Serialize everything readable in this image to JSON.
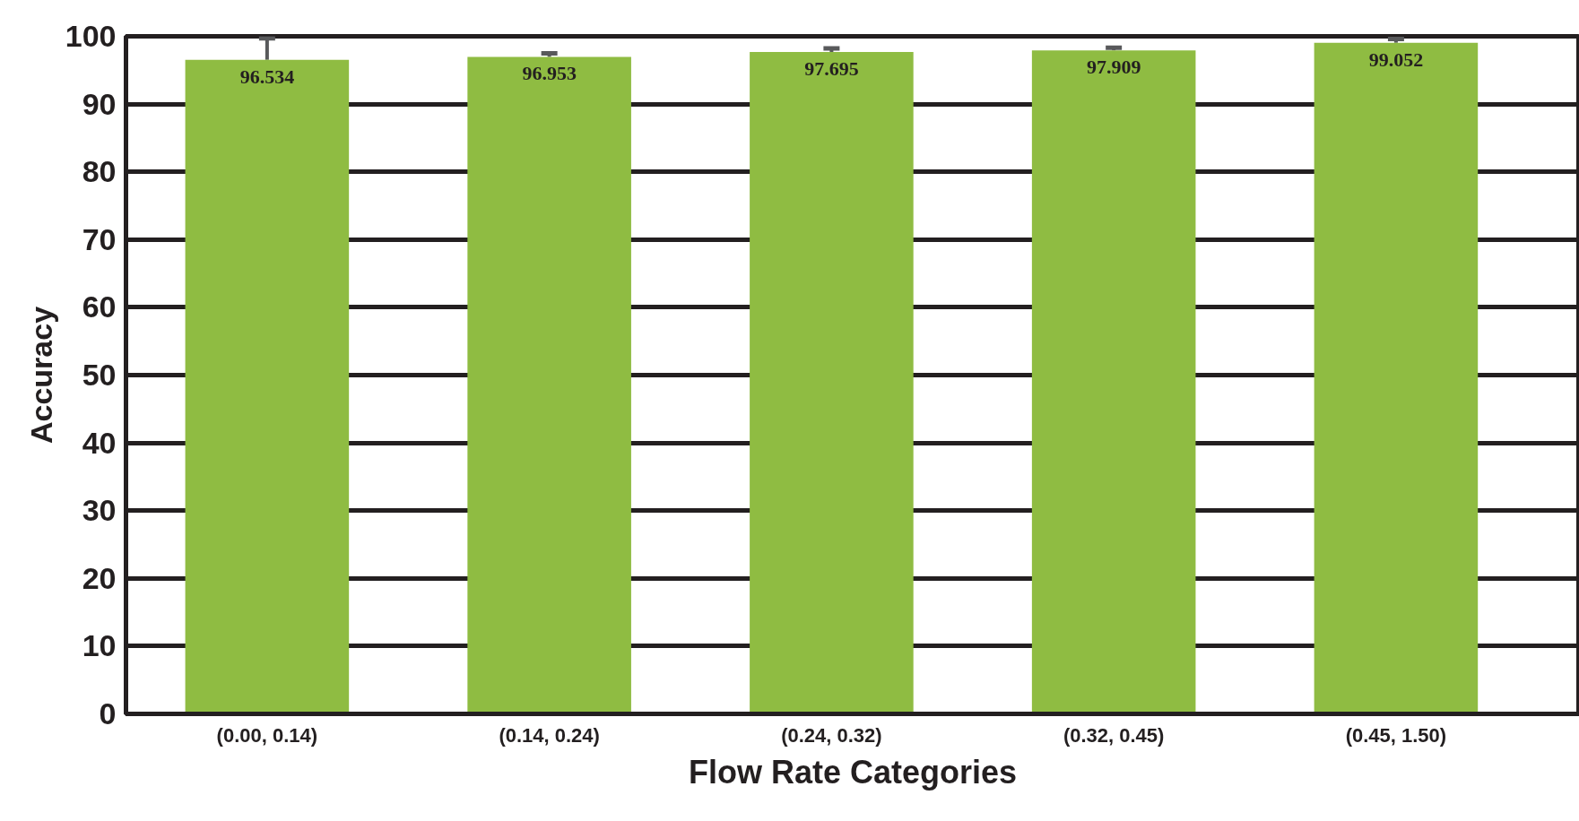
{
  "chart_data": {
    "type": "bar",
    "xlabel": "Flow Rate Categories",
    "ylabel": "Accuracy",
    "categories": [
      "(0.00, 0.14)",
      "(0.14, 0.24)",
      "(0.24, 0.32)",
      "(0.32, 0.45)",
      "(0.45, 1.50)"
    ],
    "values": [
      96.534,
      96.953,
      97.695,
      97.909,
      99.052
    ],
    "errors": [
      [
        96.534,
        99.7
      ],
      [
        96.953,
        97.5
      ],
      [
        97.695,
        98.2
      ],
      [
        97.909,
        98.3
      ],
      [
        99.052,
        99.6
      ]
    ],
    "color": "#8fbc42",
    "data_labels": true,
    "ylim": [
      0,
      100
    ],
    "yticks": [
      0,
      10,
      20,
      30,
      40,
      50,
      60,
      70,
      80,
      90,
      100
    ],
    "grid": "y"
  }
}
